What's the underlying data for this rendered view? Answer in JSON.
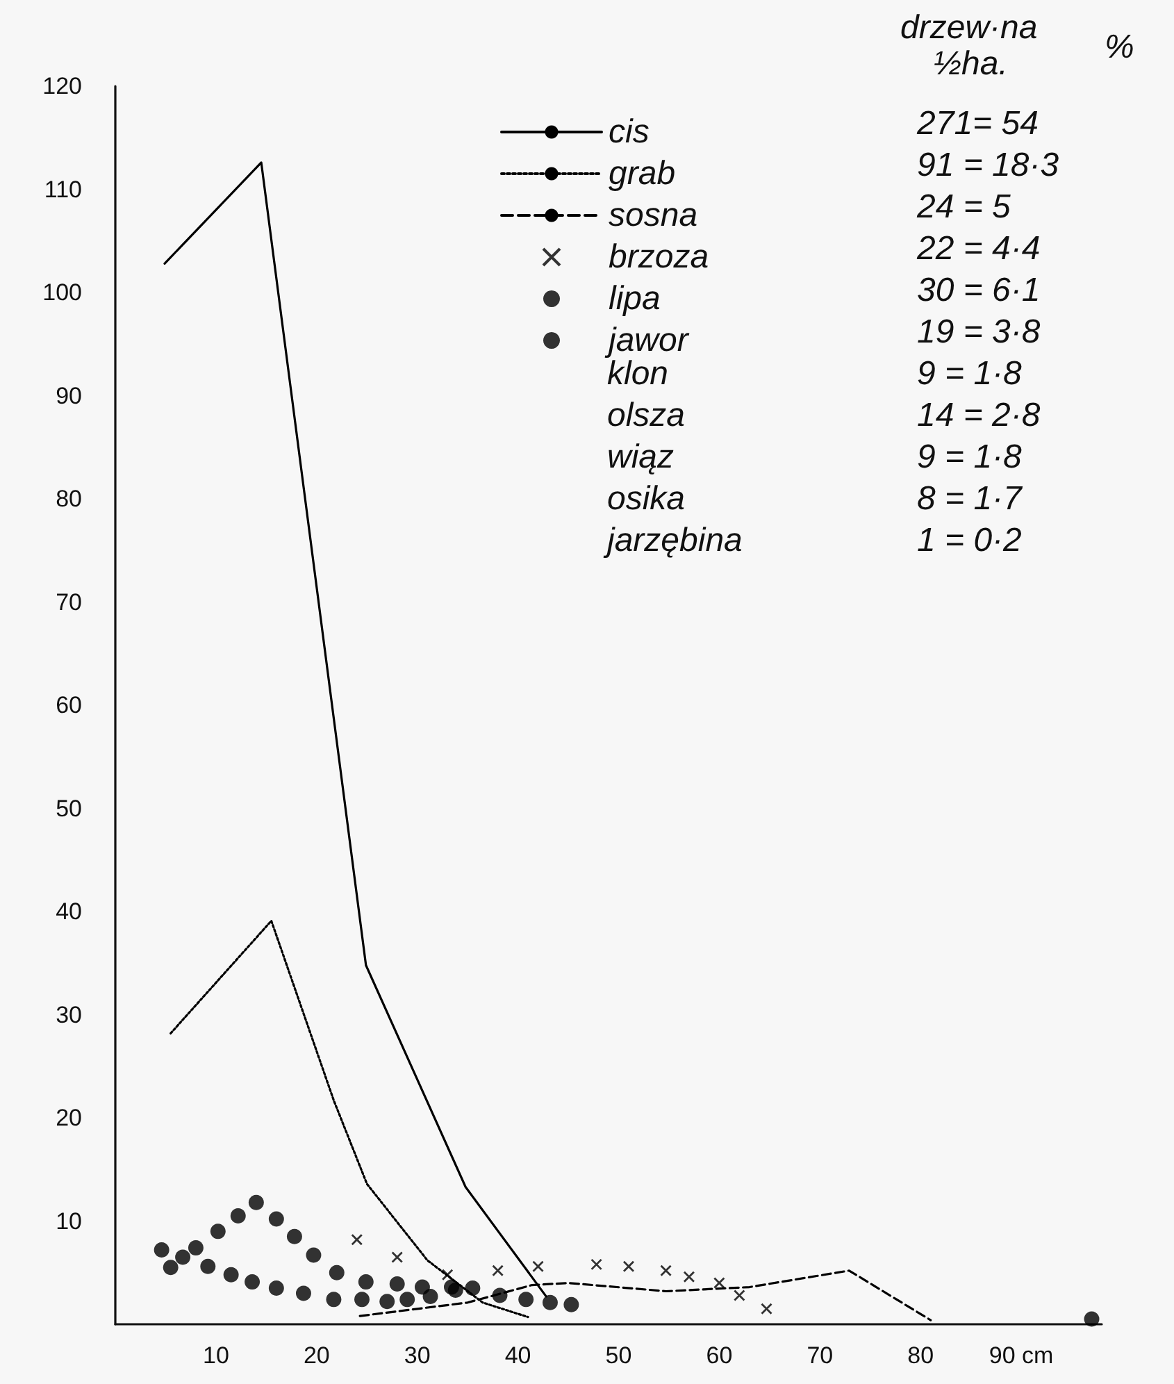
{
  "chart_data": {
    "type": "line",
    "xlim": [
      0,
      98
    ],
    "ylim": [
      0,
      120
    ],
    "xticks": [
      10,
      20,
      30,
      40,
      50,
      60,
      70,
      80,
      {
        "value": 90,
        "label": "90 cm"
      }
    ],
    "yticks": [
      10,
      20,
      30,
      40,
      50,
      60,
      70,
      80,
      90,
      100,
      110,
      120
    ],
    "grid": false,
    "legend": "top right",
    "marker": "none",
    "series": [
      {
        "name": "cis",
        "color": "#000000",
        "line_style": "solid",
        "x": [
          4.9,
          14.5,
          24.9,
          34.8,
          42.8
        ],
        "values": [
          102.8,
          112.6,
          34.8,
          13.3,
          2.7
        ]
      },
      {
        "name": "grab",
        "color": "#000000",
        "line_style": "dotted",
        "x": [
          5.5,
          15.5,
          21.7,
          25,
          31,
          36.5,
          41
        ],
        "values": [
          28.2,
          39.1,
          21.7,
          13.6,
          6.2,
          2.1,
          0.7
        ]
      },
      {
        "name": "sosna",
        "color": "#000000",
        "line_style": "dashed",
        "x": [
          24.3,
          35,
          41.4,
          45,
          54.7,
          63,
          72.9,
          81
        ],
        "values": [
          0.8,
          2.1,
          3.8,
          4,
          3.2,
          3.6,
          5.2,
          0.4
        ]
      },
      {
        "name": "brzoza",
        "type": "scatter",
        "marker": "cross",
        "color": "#000000",
        "x": [
          24,
          28,
          33,
          38,
          42,
          47.8,
          51,
          54.7,
          57,
          60,
          62,
          64.7
        ],
        "values": [
          8.2,
          6.5,
          4.8,
          5.2,
          5.6,
          5.8,
          5.6,
          5.2,
          4.6,
          4,
          2.8,
          1.5
        ]
      },
      {
        "name": "lipa",
        "type": "scatter",
        "marker": "circle",
        "color": "#000000",
        "x": [
          5.5,
          8,
          10.2,
          12.2,
          14,
          16,
          17.8,
          19.7,
          22,
          24.9,
          28,
          30.5,
          33.4
        ],
        "values": [
          5.5,
          7.4,
          9,
          10.5,
          11.8,
          10.2,
          8.5,
          6.7,
          5,
          4.1,
          3.9,
          3.6,
          3.6
        ]
      },
      {
        "name": "jawor",
        "type": "scatter",
        "marker": "circle",
        "color": "#000000",
        "x": [
          4.6,
          6.7,
          9.2,
          11.5,
          13.6,
          16,
          18.7,
          21.7,
          24.5,
          27,
          29,
          31.3,
          33.8,
          35.5,
          38.2,
          40.8,
          43.2,
          45.3,
          97
        ],
        "values": [
          7.2,
          6.5,
          5.6,
          4.8,
          4.1,
          3.5,
          3,
          2.4,
          2.4,
          2.2,
          2.4,
          2.7,
          3.3,
          3.5,
          2.8,
          2.4,
          2.1,
          1.9,
          0.5
        ]
      }
    ],
    "annotations": [
      "drzew·na",
      "½ha.",
      "%",
      "271= 54",
      "91 = 18·3",
      "24 = 5",
      "22 = 4·4",
      "30 = 6·1",
      "19 = 3·8",
      "klon",
      "9 = 1·8",
      "olsza",
      "14 = 2·8",
      "wiąz",
      "9 = 1·8",
      "osika",
      "8 = 1·7",
      "jarzębina",
      "1 = 0·2"
    ]
  }
}
